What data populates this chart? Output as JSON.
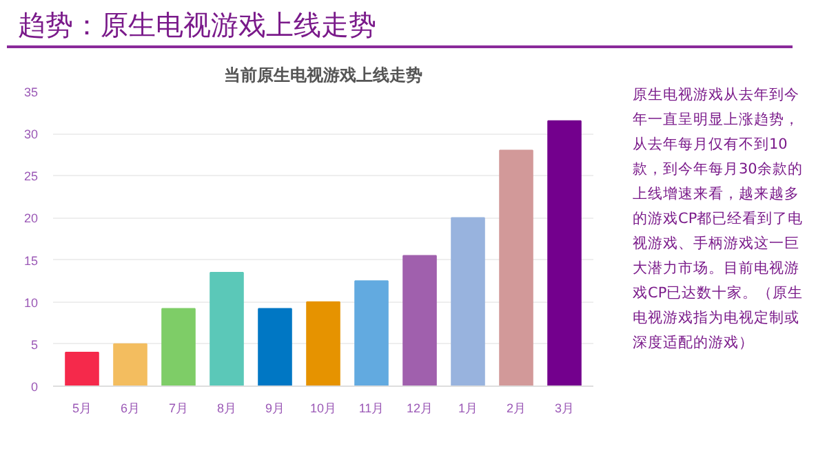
{
  "chart_data": {
    "type": "bar",
    "title": "趋势：原生电视游戏上线走势",
    "subtitle": "当前原生电视游戏上线走势",
    "categories": [
      "5月",
      "6月",
      "7月",
      "8月",
      "9月",
      "10月",
      "11月",
      "12月",
      "1月",
      "2月",
      "3月"
    ],
    "values": [
      4,
      5,
      9.2,
      13.5,
      9.2,
      10,
      12.5,
      15.5,
      20,
      28,
      31.5
    ],
    "colors": [
      "#f5294b",
      "#f3bd5f",
      "#7ecd67",
      "#5bc8b8",
      "#0077c4",
      "#e69300",
      "#62aae0",
      "#a060ad",
      "#98b3de",
      "#d29999",
      "#73008d"
    ],
    "ylim": [
      0,
      35
    ],
    "yticks": [
      0,
      5,
      10,
      15,
      20,
      25,
      30,
      35
    ],
    "grid": "y",
    "annotations": [
      "原生电视游戏从去年到今年一直呈明显上涨趋势，从去年每月仅有不到10款，到今年每月30余款的上线增速来看，越来越多的游戏CP都已经看到了电视游戏、手柄游戏这一巨大潜力市场。目前电视游戏CP已达数十家。（原生电视游戏指为电视定制或深度适配的游戏）"
    ]
  }
}
